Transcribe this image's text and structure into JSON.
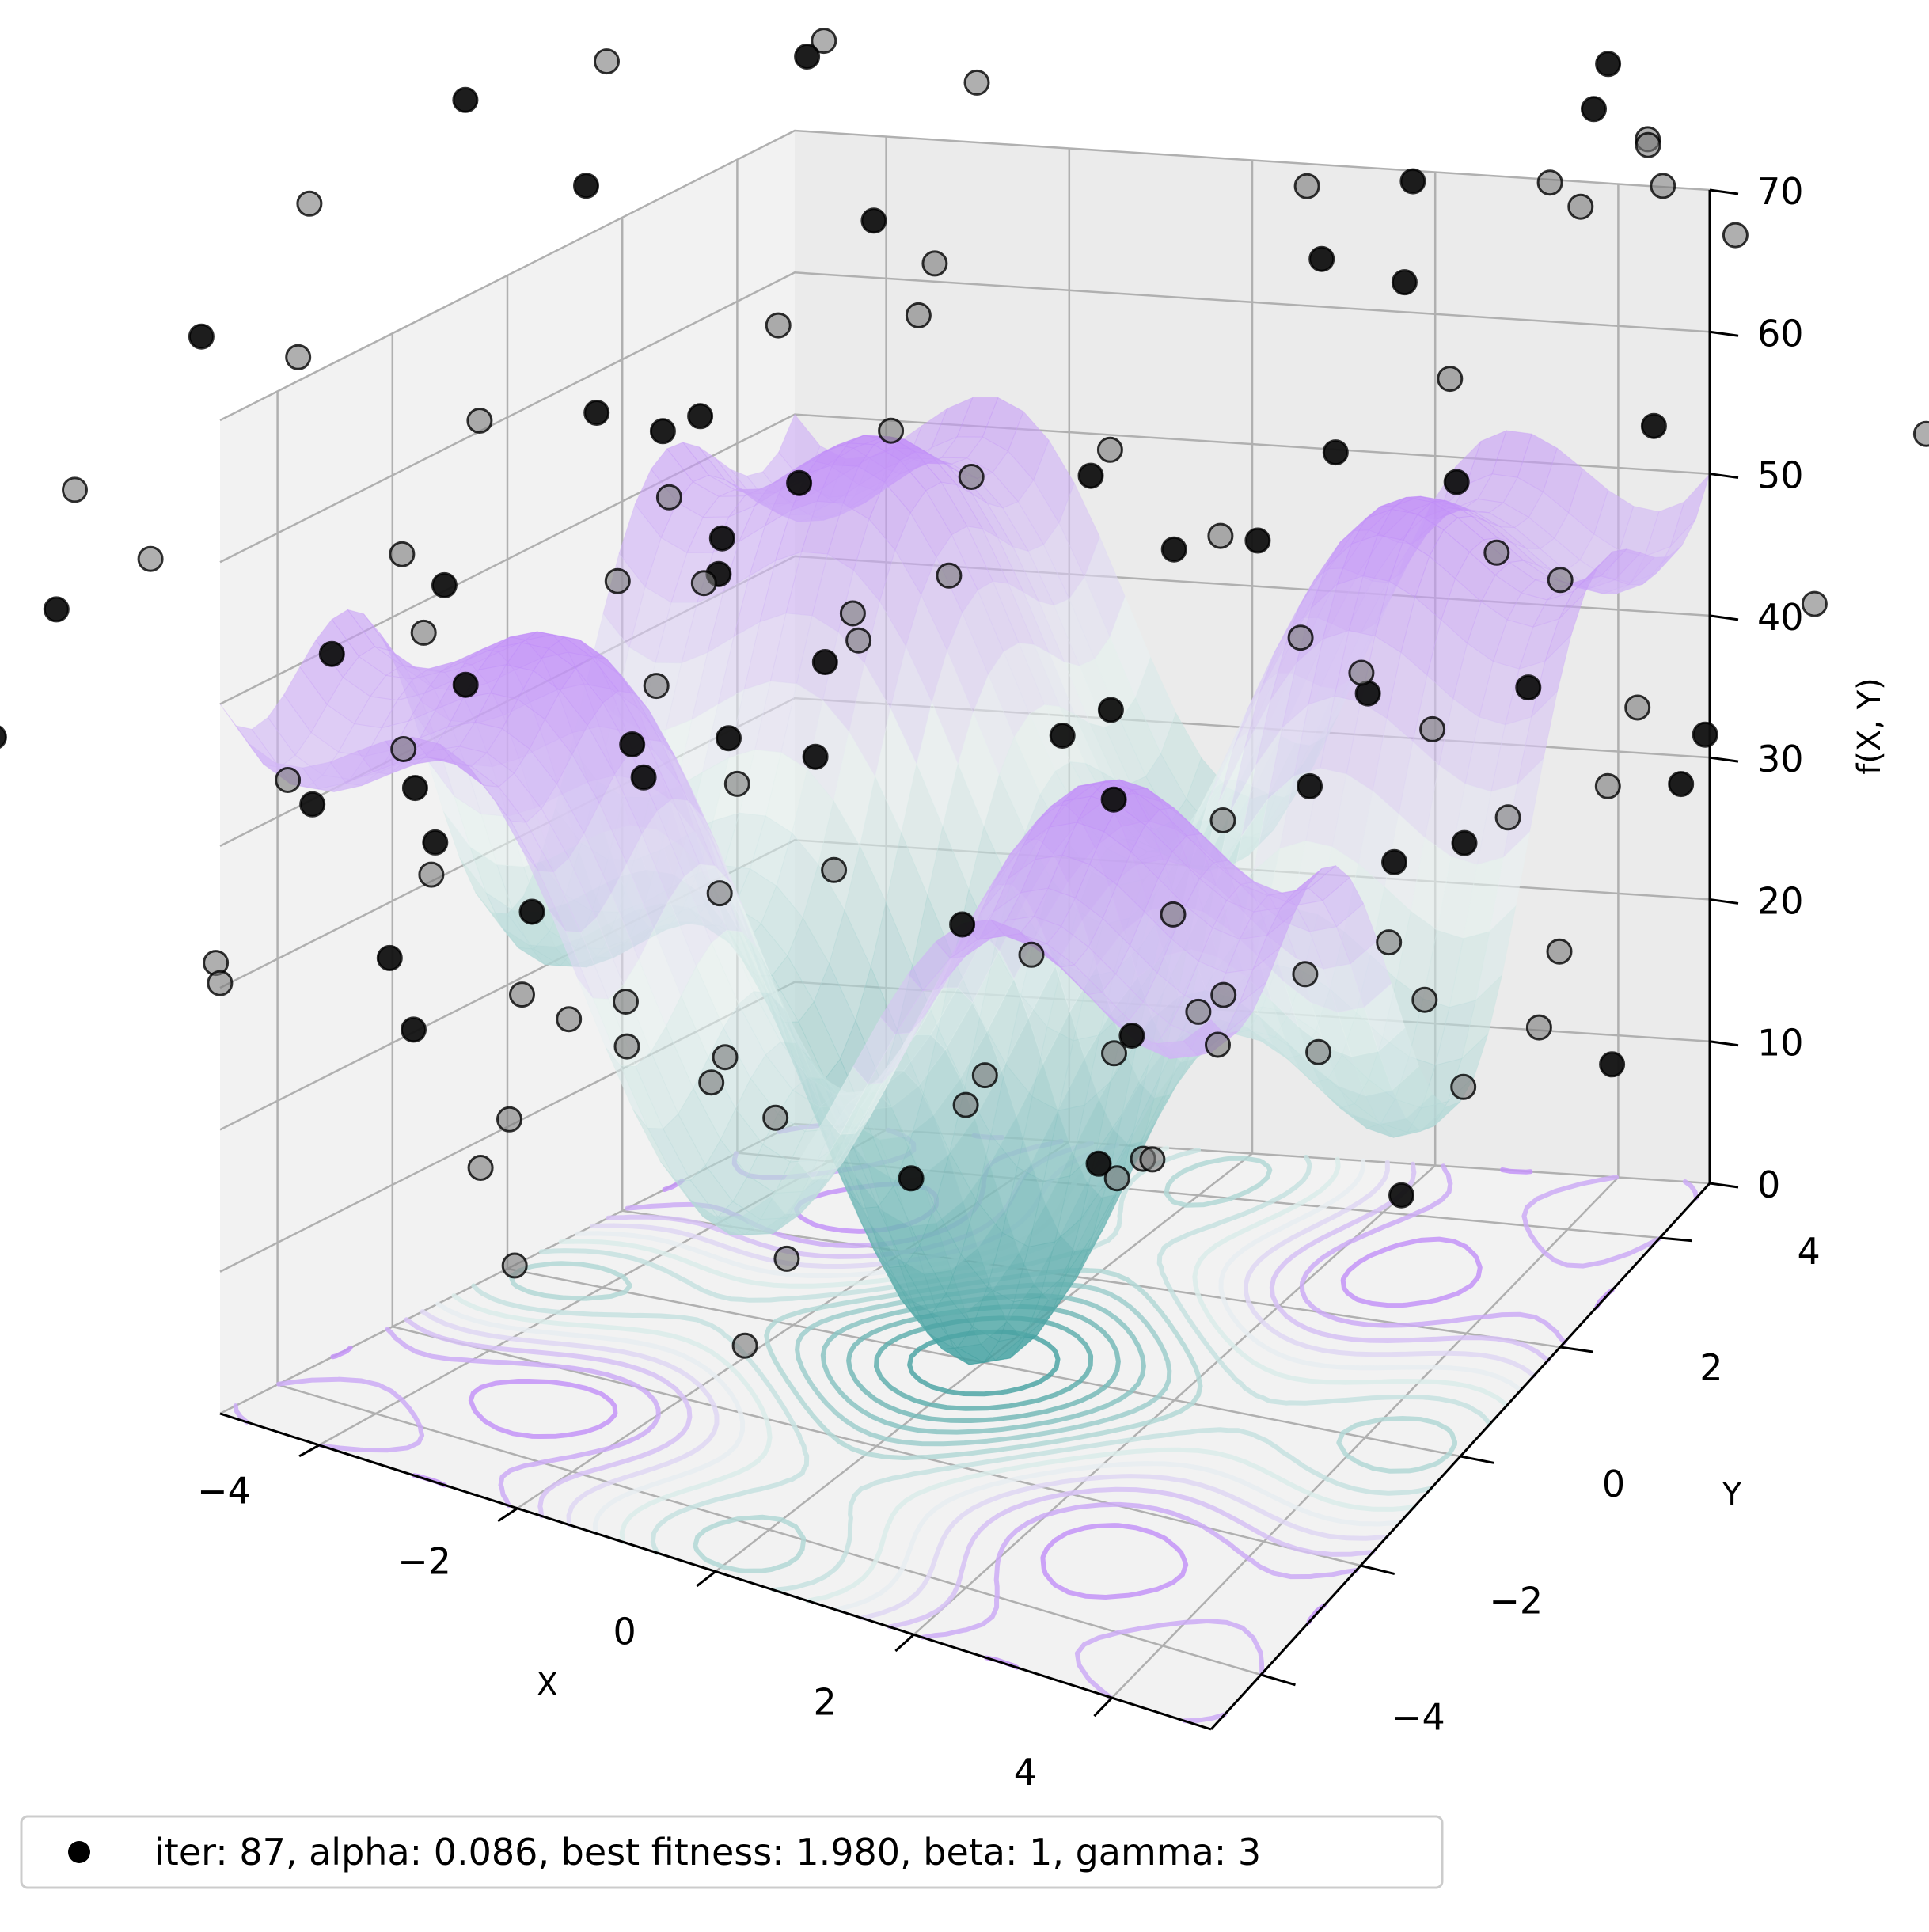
{
  "chart_data": {
    "type": "surface3d",
    "title": "",
    "xlabel": "X",
    "ylabel": "Y",
    "zlabel": "f(X, Y)",
    "xlim": [
      -5,
      5
    ],
    "ylim": [
      -5,
      5
    ],
    "zlim": [
      0,
      70
    ],
    "x_ticks": [
      -4,
      -2,
      0,
      2,
      4
    ],
    "y_ticks": [
      -4,
      -2,
      0,
      2,
      4
    ],
    "z_ticks": [
      0,
      10,
      20,
      30,
      40,
      50,
      60,
      70
    ],
    "x_tick_labels": [
      "−4",
      "−2",
      "0",
      "2",
      "4"
    ],
    "y_tick_labels": [
      "−4",
      "−2",
      "0",
      "2",
      "4"
    ],
    "z_tick_labels": [
      "0",
      "10",
      "20",
      "30",
      "40",
      "50",
      "60",
      "70"
    ],
    "grid": true,
    "surface": {
      "function": "Rastrigin-like f(X,Y) = 20 + X^2 + Y^2 - 10cos(2πX/5) - 10cos(2πY/5)",
      "colormap": [
        "#3b9c9c",
        "#eaf3f1",
        "#9b30ff"
      ],
      "alpha": 0.6,
      "contours_on_floor": true
    },
    "scatter": {
      "marker_color": "#111111",
      "marker_edge": "#000000",
      "point_count": 140
    },
    "legend": {
      "placement": "bottom-left outside",
      "entries": [
        {
          "label": "iter: 87, alpha: 0.086, best fitness: 1.980, beta: 1, gamma: 3",
          "marker": "circle",
          "color": "#000000"
        }
      ]
    }
  }
}
